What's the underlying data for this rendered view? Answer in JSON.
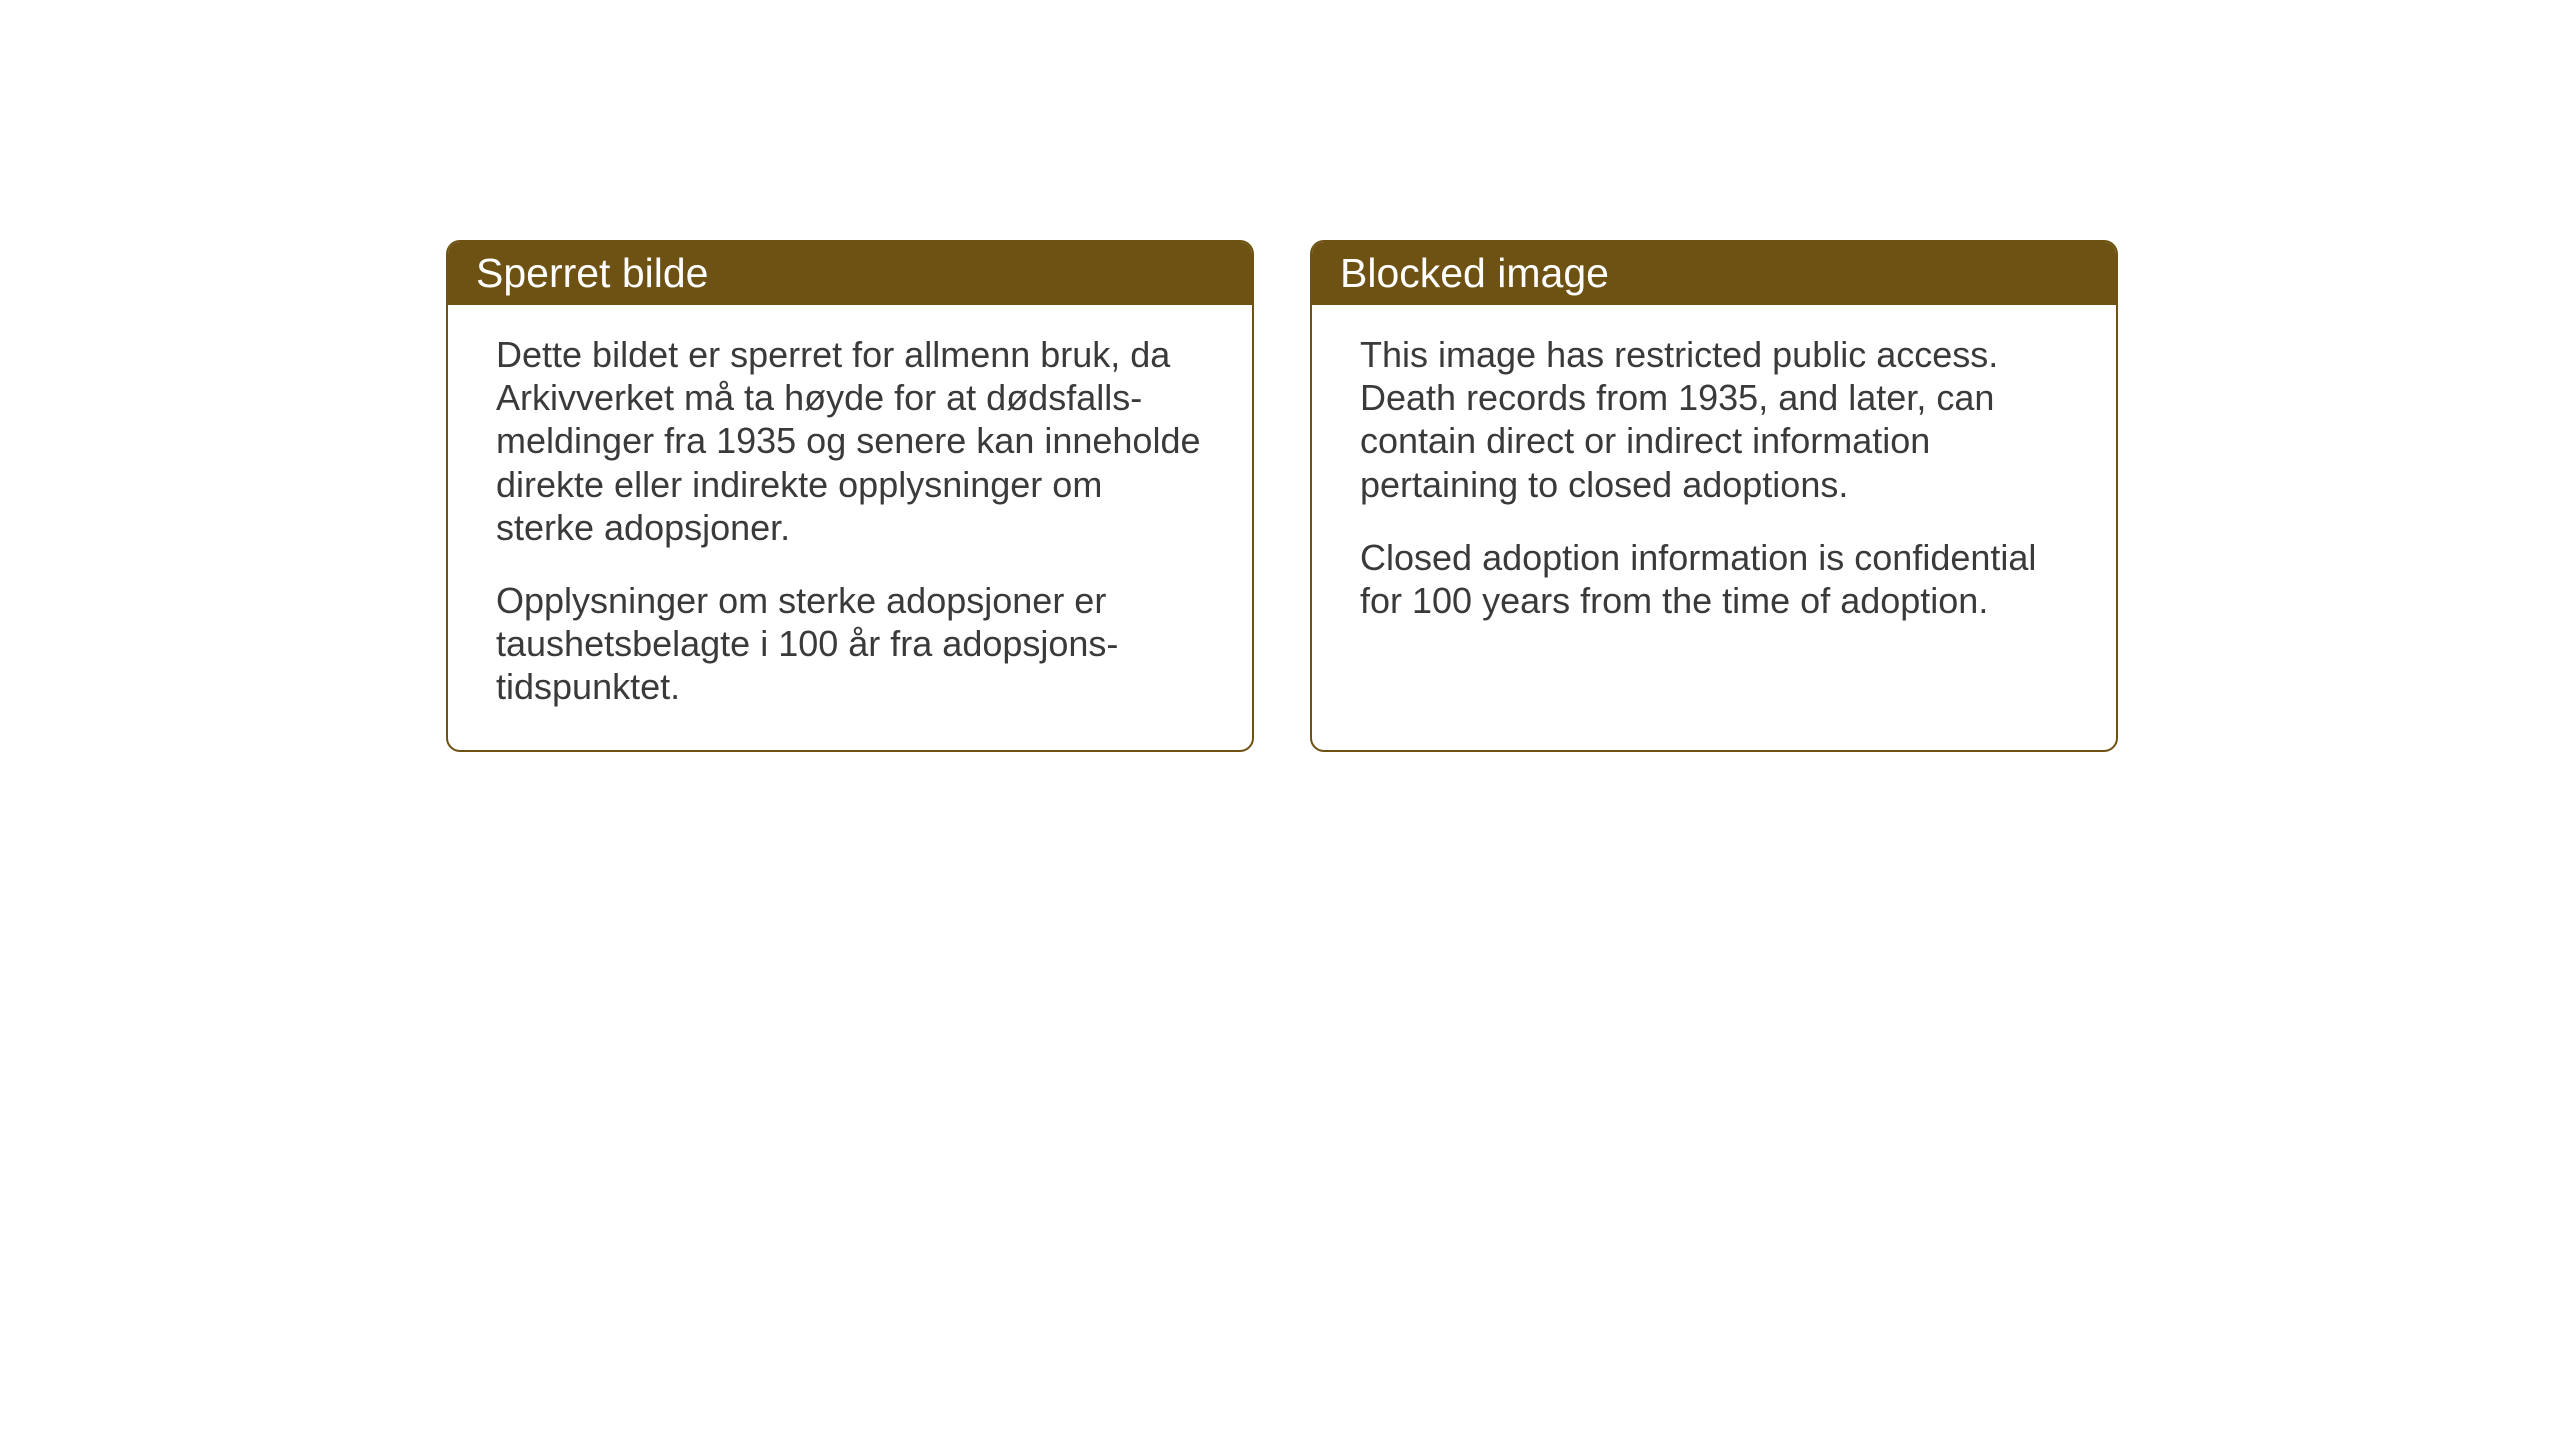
{
  "cards": [
    {
      "title": "Sperret bilde",
      "paragraph1": "Dette bildet er sperret for allmenn bruk, da Arkivverket må ta høyde for at dødsfalls-meldinger fra 1935 og senere kan inneholde direkte eller indirekte opplysninger om sterke adopsjoner.",
      "paragraph2": "Opplysninger om sterke adopsjoner er taushetsbelagte i 100 år fra adopsjons-tidspunktet."
    },
    {
      "title": "Blocked image",
      "paragraph1": "This image has restricted public access. Death records from 1935, and later, can contain direct or indirect information pertaining to closed adoptions.",
      "paragraph2": "Closed adoption information is confidential for 100 years from the time of adoption."
    }
  ],
  "styling": {
    "header_background_color": "#6e5213",
    "header_text_color": "#ffffff",
    "border_color": "#6e5213",
    "body_text_color": "#3a3a3a",
    "background_color": "#ffffff",
    "border_radius": 14,
    "header_fontsize": 41,
    "body_fontsize": 36
  }
}
